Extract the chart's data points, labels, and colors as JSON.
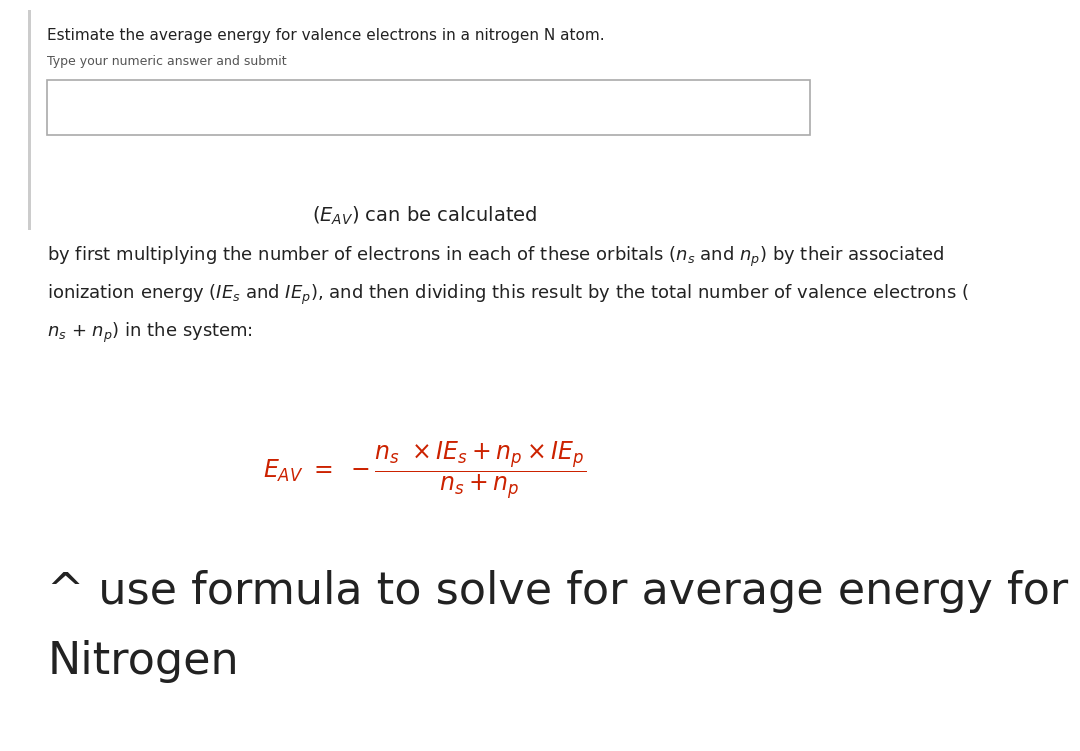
{
  "bg_color": "#ffffff",
  "left_bar_color": "#cccccc",
  "title_text": "Estimate the average energy for valence electrons in a nitrogen N atom.",
  "subtitle_text": "Type your numeric answer and submit",
  "center_text": "(Eₐᵥ) can be calculated",
  "body_line1": "by first multiplying the number of electrons in each of these orbitals (",
  "body_line1_math": "nₛ",
  "body_line1_and": " and ",
  "body_line1_math2": "nₚ",
  "body_line1_end": ") by their associated",
  "body_line2_start": "ionization energy (",
  "body_line2_math1": "IEₛ",
  "body_line2_and": " and ",
  "body_line2_math2": "IEₚ",
  "body_line2_end": "), and then dividing this result by the total number of valence electrons (",
  "body_line3_math1": "nₛ",
  "body_line3_plus": " + ",
  "body_line3_math2": "nₚ",
  "body_line3_end": ") in the system:",
  "formula_color": "#cc2200",
  "bottom_text_line1": "^ use formula to solve for average energy for",
  "bottom_text_line2": "Nitrogen",
  "box_linecolor": "#aaaaaa"
}
